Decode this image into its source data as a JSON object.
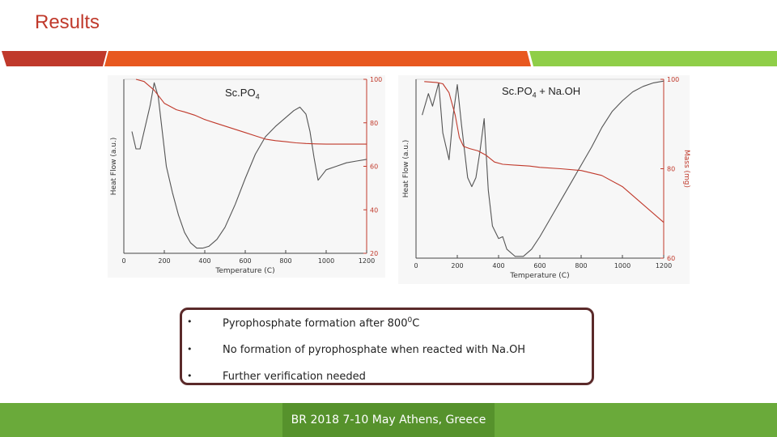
{
  "page": {
    "title": "Results"
  },
  "band": {
    "colors": [
      "#c0392b",
      "#e8581f",
      "#8fce48"
    ]
  },
  "charts": [
    {
      "title_main": "Sc.PO",
      "title_sub": "4",
      "title_suffix": "",
      "chart_data": {
        "type": "line",
        "xlabel": "Temperature (C)",
        "ylabel": "Heat Flow (a.u.)",
        "y2label": "",
        "xlim": [
          0,
          1200
        ],
        "x_ticks": [
          "0",
          "200",
          "400",
          "600",
          "800",
          "1000",
          "1200"
        ],
        "y2_ticks": [
          "20",
          "40",
          "60",
          "80",
          "100"
        ],
        "y2lim": [
          20,
          100
        ],
        "series": [
          {
            "axis": "left",
            "color": "#555555",
            "x": [
              40,
              60,
              80,
              100,
              130,
              150,
              170,
              190,
              210,
              240,
              270,
              300,
              330,
              360,
              390,
              420,
              460,
              500,
              550,
              600,
              650,
              700,
              750,
              800,
              840,
              870,
              900,
              920,
              940,
              960,
              980,
              1000,
              1050,
              1100,
              1150,
              1200
            ],
            "y": [
              0.7,
              0.6,
              0.6,
              0.7,
              0.85,
              0.98,
              0.9,
              0.7,
              0.5,
              0.35,
              0.22,
              0.12,
              0.06,
              0.03,
              0.03,
              0.04,
              0.08,
              0.15,
              0.28,
              0.43,
              0.57,
              0.67,
              0.73,
              0.78,
              0.82,
              0.84,
              0.8,
              0.7,
              0.55,
              0.42,
              0.45,
              0.48,
              0.5,
              0.52,
              0.53,
              0.54
            ]
          },
          {
            "axis": "right",
            "color": "#c0392b",
            "x": [
              60,
              100,
              150,
              200,
              260,
              300,
              350,
              400,
              450,
              500,
              550,
              600,
              650,
              700,
              750,
              800,
              850,
              900,
              950,
              1000,
              1100,
              1200
            ],
            "y": [
              100,
              99,
              95,
              89,
              86,
              85,
              83.5,
              81.5,
              80,
              78.5,
              77,
              75.5,
              74,
              72.5,
              71.8,
              71.3,
              70.8,
              70.5,
              70.3,
              70.2,
              70.2,
              70.2
            ]
          }
        ]
      }
    },
    {
      "title_main": "Sc.PO",
      "title_sub": "4",
      "title_suffix": " + Na.OH",
      "chart_data": {
        "type": "line",
        "xlabel": "Temperature (C)",
        "ylabel": "Heat Flow (a.u.)",
        "y2label": "Mass (mg)",
        "xlim": [
          0,
          1200
        ],
        "x_ticks": [
          "0",
          "200",
          "400",
          "600",
          "800",
          "1000",
          "1200"
        ],
        "y2_ticks": [
          "60",
          "80",
          "100"
        ],
        "y2lim": [
          60,
          100
        ],
        "series": [
          {
            "axis": "left",
            "color": "#555555",
            "x": [
              30,
              60,
              80,
              110,
              130,
              160,
              180,
              200,
              220,
              250,
              270,
              290,
              310,
              330,
              350,
              370,
              400,
              420,
              440,
              480,
              520,
              560,
              600,
              650,
              700,
              750,
              800,
              850,
              900,
              950,
              1000,
              1050,
              1100,
              1150,
              1200
            ],
            "y": [
              0.8,
              0.92,
              0.85,
              0.98,
              0.7,
              0.55,
              0.8,
              0.97,
              0.75,
              0.45,
              0.4,
              0.45,
              0.6,
              0.78,
              0.38,
              0.18,
              0.11,
              0.12,
              0.05,
              0.01,
              0.01,
              0.05,
              0.12,
              0.22,
              0.32,
              0.42,
              0.52,
              0.62,
              0.73,
              0.82,
              0.88,
              0.93,
              0.96,
              0.98,
              0.99
            ]
          },
          {
            "axis": "right",
            "color": "#c0392b",
            "x": [
              40,
              100,
              130,
              160,
              190,
              210,
              230,
              260,
              300,
              340,
              380,
              420,
              480,
              550,
              600,
              700,
              800,
              900,
              1000,
              1100,
              1200
            ],
            "y": [
              99.5,
              99.3,
              99,
              97,
              92,
              87,
              85,
              84.5,
              84,
              83,
              81.5,
              81,
              80.8,
              80.6,
              80.3,
              80,
              79.6,
              78.5,
              76,
              72,
              68
            ]
          }
        ]
      }
    }
  ],
  "bullets": [
    {
      "dot": "•",
      "text": "Pyrophosphate formation after 800",
      "sup": "0",
      "suffix": "C"
    },
    {
      "dot": "•",
      "text": "No formation of pyrophosphate when reacted with Na.OH",
      "sup": "",
      "suffix": ""
    },
    {
      "dot": "•",
      "text": "Further verification needed",
      "sup": "",
      "suffix": ""
    }
  ],
  "footer": {
    "text": "BR 2018 7-10 May Athens, Greece"
  }
}
